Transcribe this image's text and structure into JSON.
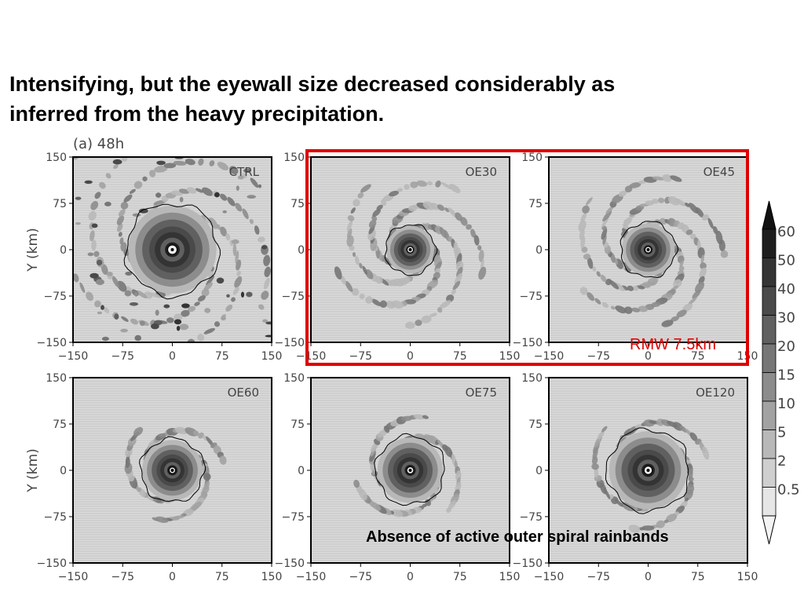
{
  "slide": {
    "title_line1": "Intensifying, but the eyewall size decreased considerably as",
    "title_line2": "inferred from the heavy precipitation.",
    "rmw_note": "RMW 7.5km",
    "bottom_note": "Absence of active outer spiral rainbands",
    "highlight_color": "#e00000"
  },
  "chart_data": {
    "type": "heatmap",
    "figure_label": "(a) 48h",
    "variable": "precipitation",
    "xlim": [
      -150,
      150
    ],
    "ylim": [
      -150,
      150
    ],
    "x_ticks": [
      -150,
      -75,
      0,
      75,
      150
    ],
    "y_ticks": [
      150,
      75,
      0,
      -75,
      -150
    ],
    "ylabel": "Y (km)",
    "panels": [
      {
        "name": "CTRL",
        "row": 0,
        "col": 0,
        "rmw_contour_radius_km": 70,
        "outer_rainbands": true,
        "spiral_extent_km": 150
      },
      {
        "name": "OE30",
        "row": 0,
        "col": 1,
        "rmw_contour_radius_km": 38,
        "outer_rainbands": true,
        "spiral_extent_km": 110
      },
      {
        "name": "OE45",
        "row": 0,
        "col": 2,
        "rmw_contour_radius_km": 42,
        "outer_rainbands": true,
        "spiral_extent_km": 110
      },
      {
        "name": "OE60",
        "row": 1,
        "col": 0,
        "rmw_contour_radius_km": 48,
        "outer_rainbands": false,
        "spiral_extent_km": 70
      },
      {
        "name": "OE75",
        "row": 1,
        "col": 1,
        "rmw_contour_radius_km": 52,
        "outer_rainbands": false,
        "spiral_extent_km": 75
      },
      {
        "name": "OE120",
        "row": 1,
        "col": 2,
        "rmw_contour_radius_km": 62,
        "outer_rainbands": false,
        "spiral_extent_km": 80
      }
    ],
    "colorbar": {
      "levels": [
        "0.5",
        "2",
        "5",
        "10",
        "15",
        "20",
        "30",
        "40",
        "50",
        "60"
      ],
      "colors": [
        "#e6e6e6",
        "#cfcfcf",
        "#b8b8b8",
        "#a2a2a2",
        "#8c8c8c",
        "#767676",
        "#606060",
        "#4a4a4a",
        "#343434",
        "#1e1e1e"
      ]
    },
    "highlight_box_panels": [
      "OE30",
      "OE45"
    ]
  }
}
